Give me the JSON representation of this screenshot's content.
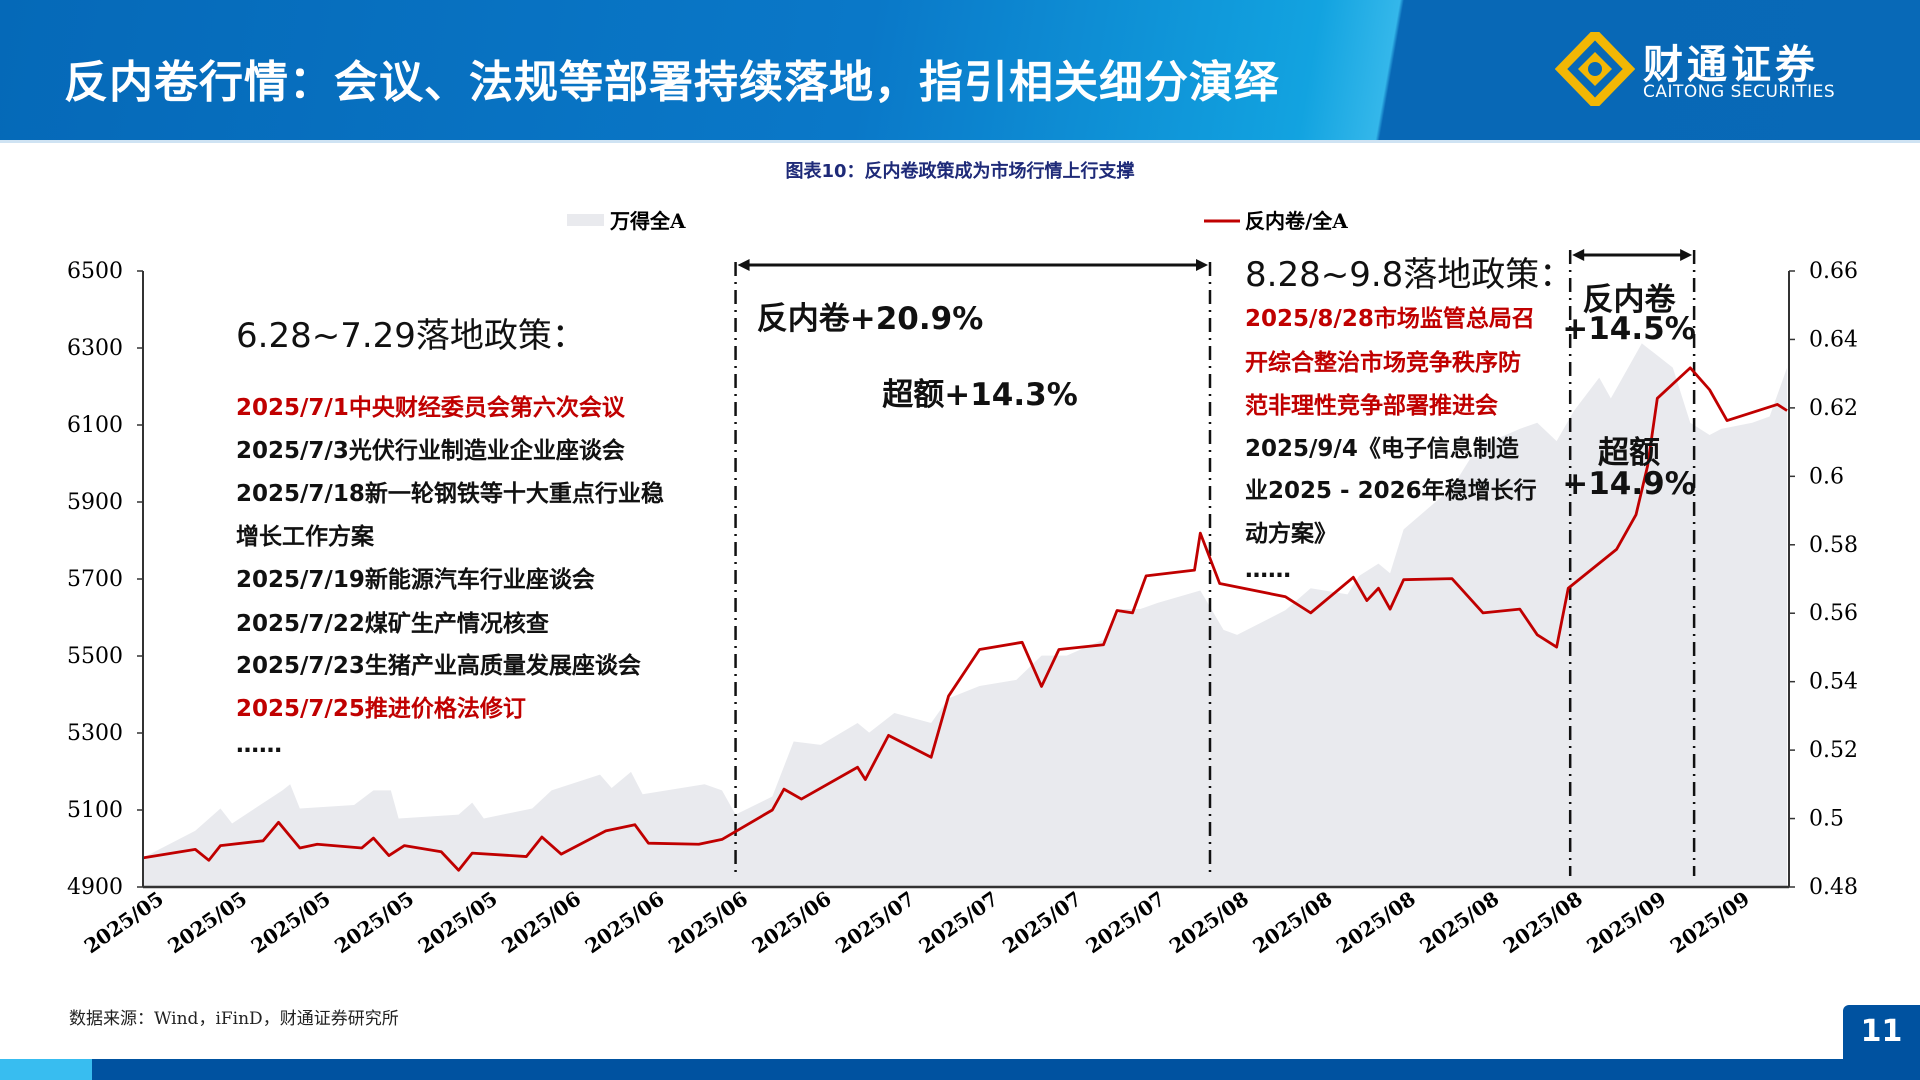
{
  "header": {
    "title": "反内卷行情：会议、法规等部署持续落地，指引相关细分演绎",
    "logo_cn": "财通证券",
    "logo_en": "CAITONG SECURITIES"
  },
  "colors": {
    "accent": "#0569b8",
    "red": "#c00000",
    "area": "#e9eaee"
  },
  "chart_data": {
    "type": "line",
    "title": "图表10：反内卷政策成为市场行情上行支撑",
    "legend": [
      "万得全A",
      "反内卷/全A"
    ],
    "legend_position": "top",
    "x_tick_labels": [
      "2025/05",
      "2025/05",
      "2025/05",
      "2025/05",
      "2025/05",
      "2025/06",
      "2025/06",
      "2025/06",
      "2025/06",
      "2025/07",
      "2025/07",
      "2025/07",
      "2025/07",
      "2025/08",
      "2025/08",
      "2025/08",
      "2025/08",
      "2025/08",
      "2025/09",
      "2025/09"
    ],
    "xlim": [
      0,
      85
    ],
    "y_left": {
      "ticks": [
        "6500",
        "6300",
        "6100",
        "5900",
        "5700",
        "5500",
        "5300",
        "5100",
        "4900"
      ],
      "ylim": [
        4900,
        6500
      ]
    },
    "y_right": {
      "ticks": [
        "0.66",
        "0.64",
        "0.62",
        "0.6",
        "0.58",
        "0.56",
        "0.54",
        "0.52",
        "0.5",
        "0.48"
      ],
      "ylim": [
        0.48,
        0.66
      ]
    },
    "series": [
      {
        "name": "万得全A",
        "type": "area",
        "axis": "left",
        "x": [
          0,
          2.7,
          4,
          4.6,
          7.2,
          7.6,
          8.1,
          10.9,
          11.9,
          12.8,
          13.2,
          16.3,
          17,
          17.6,
          20.1,
          21.1,
          23.6,
          24.2,
          25.2,
          25.8,
          29,
          29.9,
          30.6,
          32.5,
          33.6,
          35,
          36.9,
          37.5,
          38.8,
          40.7,
          41.6,
          43.2,
          45.1,
          46.4,
          47.7,
          49.6,
          50.5,
          51.5,
          52.4,
          54.6,
          55.8,
          56.5,
          59,
          60.3,
          62.2,
          62.8,
          63.8,
          64.4,
          65.1,
          67.6,
          68.9,
          71.1,
          72,
          73,
          73.9,
          75.2,
          75.8,
          77.4,
          79,
          79.9,
          80.9,
          81.5,
          83.1,
          84,
          84.9
        ],
        "y": [
          4976,
          5046,
          5104,
          5065,
          5151,
          5167,
          5104,
          5113,
          5151,
          5151,
          5078,
          5088,
          5119,
          5078,
          5104,
          5151,
          5192,
          5157,
          5199,
          5141,
          5167,
          5151,
          5088,
          5135,
          5278,
          5269,
          5326,
          5301,
          5352,
          5326,
          5390,
          5422,
          5438,
          5501,
          5501,
          5543,
          5622,
          5622,
          5638,
          5670,
          5568,
          5555,
          5619,
          5676,
          5660,
          5708,
          5740,
          5715,
          5829,
          5937,
          6042,
          6090,
          6106,
          6058,
          6137,
          6223,
          6169,
          6312,
          6249,
          6106,
          6074,
          6090,
          6106,
          6122,
          6249
        ]
      },
      {
        "name": "反内卷/全A",
        "type": "line",
        "axis": "right",
        "x": [
          0,
          2.7,
          3.4,
          4,
          6.2,
          7,
          8.1,
          9,
          11.3,
          11.9,
          12.7,
          13.5,
          15.4,
          16.3,
          17,
          19.8,
          20.6,
          21.6,
          23.9,
          25.4,
          26.1,
          28.7,
          29.9,
          32.5,
          33.1,
          34,
          36.9,
          37.3,
          38.5,
          40.7,
          41.6,
          43.2,
          45.4,
          46.4,
          47.3,
          49.6,
          50.3,
          51.1,
          51.8,
          54.3,
          54.6,
          55.6,
          59,
          60.3,
          62.5,
          63.2,
          63.8,
          64.4,
          65.1,
          67.6,
          69.2,
          71.1,
          72,
          73,
          73.6,
          76.1,
          77.1,
          77.7,
          78.2,
          79.9,
          80.9,
          81.8,
          84.4,
          84.9
        ],
        "y": [
          0.4885,
          0.491,
          0.4878,
          0.4921,
          0.4935,
          0.4989,
          0.4914,
          0.4925,
          0.4914,
          0.4943,
          0.4892,
          0.4921,
          0.4903,
          0.4849,
          0.4899,
          0.4889,
          0.4946,
          0.4896,
          0.4964,
          0.4982,
          0.4928,
          0.4925,
          0.4939,
          0.5025,
          0.5086,
          0.5057,
          0.515,
          0.5114,
          0.5243,
          0.5179,
          0.5358,
          0.5494,
          0.5515,
          0.5386,
          0.5494,
          0.5508,
          0.5608,
          0.5601,
          0.5709,
          0.5726,
          0.5834,
          0.5687,
          0.5648,
          0.5601,
          0.5705,
          0.5637,
          0.5673,
          0.5612,
          0.5698,
          0.5701,
          0.5601,
          0.5612,
          0.5537,
          0.5501,
          0.5673,
          0.5787,
          0.5888,
          0.6031,
          0.6228,
          0.6317,
          0.6253,
          0.6163,
          0.621,
          0.6192
        ]
      }
    ],
    "markers_x": [
      30.6,
      55.1,
      73.7,
      80.1
    ],
    "annotations": {
      "period1": {
        "title": "6.28~7.29落地政策：",
        "items": [
          {
            "text": "2025/7/1中央财经委员会第六次会议",
            "red": true
          },
          {
            "text": "2025/7/3光伏行业制造业企业座谈会",
            "red": false
          },
          {
            "text": "2025/7/18新一轮钢铁等十大重点行业稳",
            "red": false
          },
          {
            "text": "增长工作方案",
            "red": false
          },
          {
            "text": "2025/7/19新能源汽车行业座谈会",
            "red": false
          },
          {
            "text": "2025/7/22煤矿生产情况核查",
            "red": false
          },
          {
            "text": "2025/7/23生猪产业高质量发展座谈会",
            "red": false
          },
          {
            "text": "2025/7/25推进价格法修订",
            "red": true
          },
          {
            "text": "……",
            "red": false
          }
        ]
      },
      "gain1": "反内卷+20.9%",
      "excess1": "超额+14.3%",
      "period2": {
        "title": "8.28~9.8落地政策：",
        "items": [
          {
            "text": "2025/8/28市场监管总局召",
            "red": true
          },
          {
            "text": "开综合整治市场竞争秩序防",
            "red": true
          },
          {
            "text": "范非理性竞争部署推进会",
            "red": true
          },
          {
            "text": "2025/9/4《电子信息制造",
            "red": false
          },
          {
            "text": "业2025 - 2026年稳增长行",
            "red": false
          },
          {
            "text": "动方案》",
            "red": false
          },
          {
            "text": "……",
            "red": false
          }
        ]
      },
      "gain2_label": "反内卷",
      "gain2_value": "+14.5%",
      "excess2_label": "超额",
      "excess2_value": "+14.9%"
    }
  },
  "footer": {
    "source": "数据来源：Wind，iFinD，财通证券研究所",
    "page": "11"
  }
}
